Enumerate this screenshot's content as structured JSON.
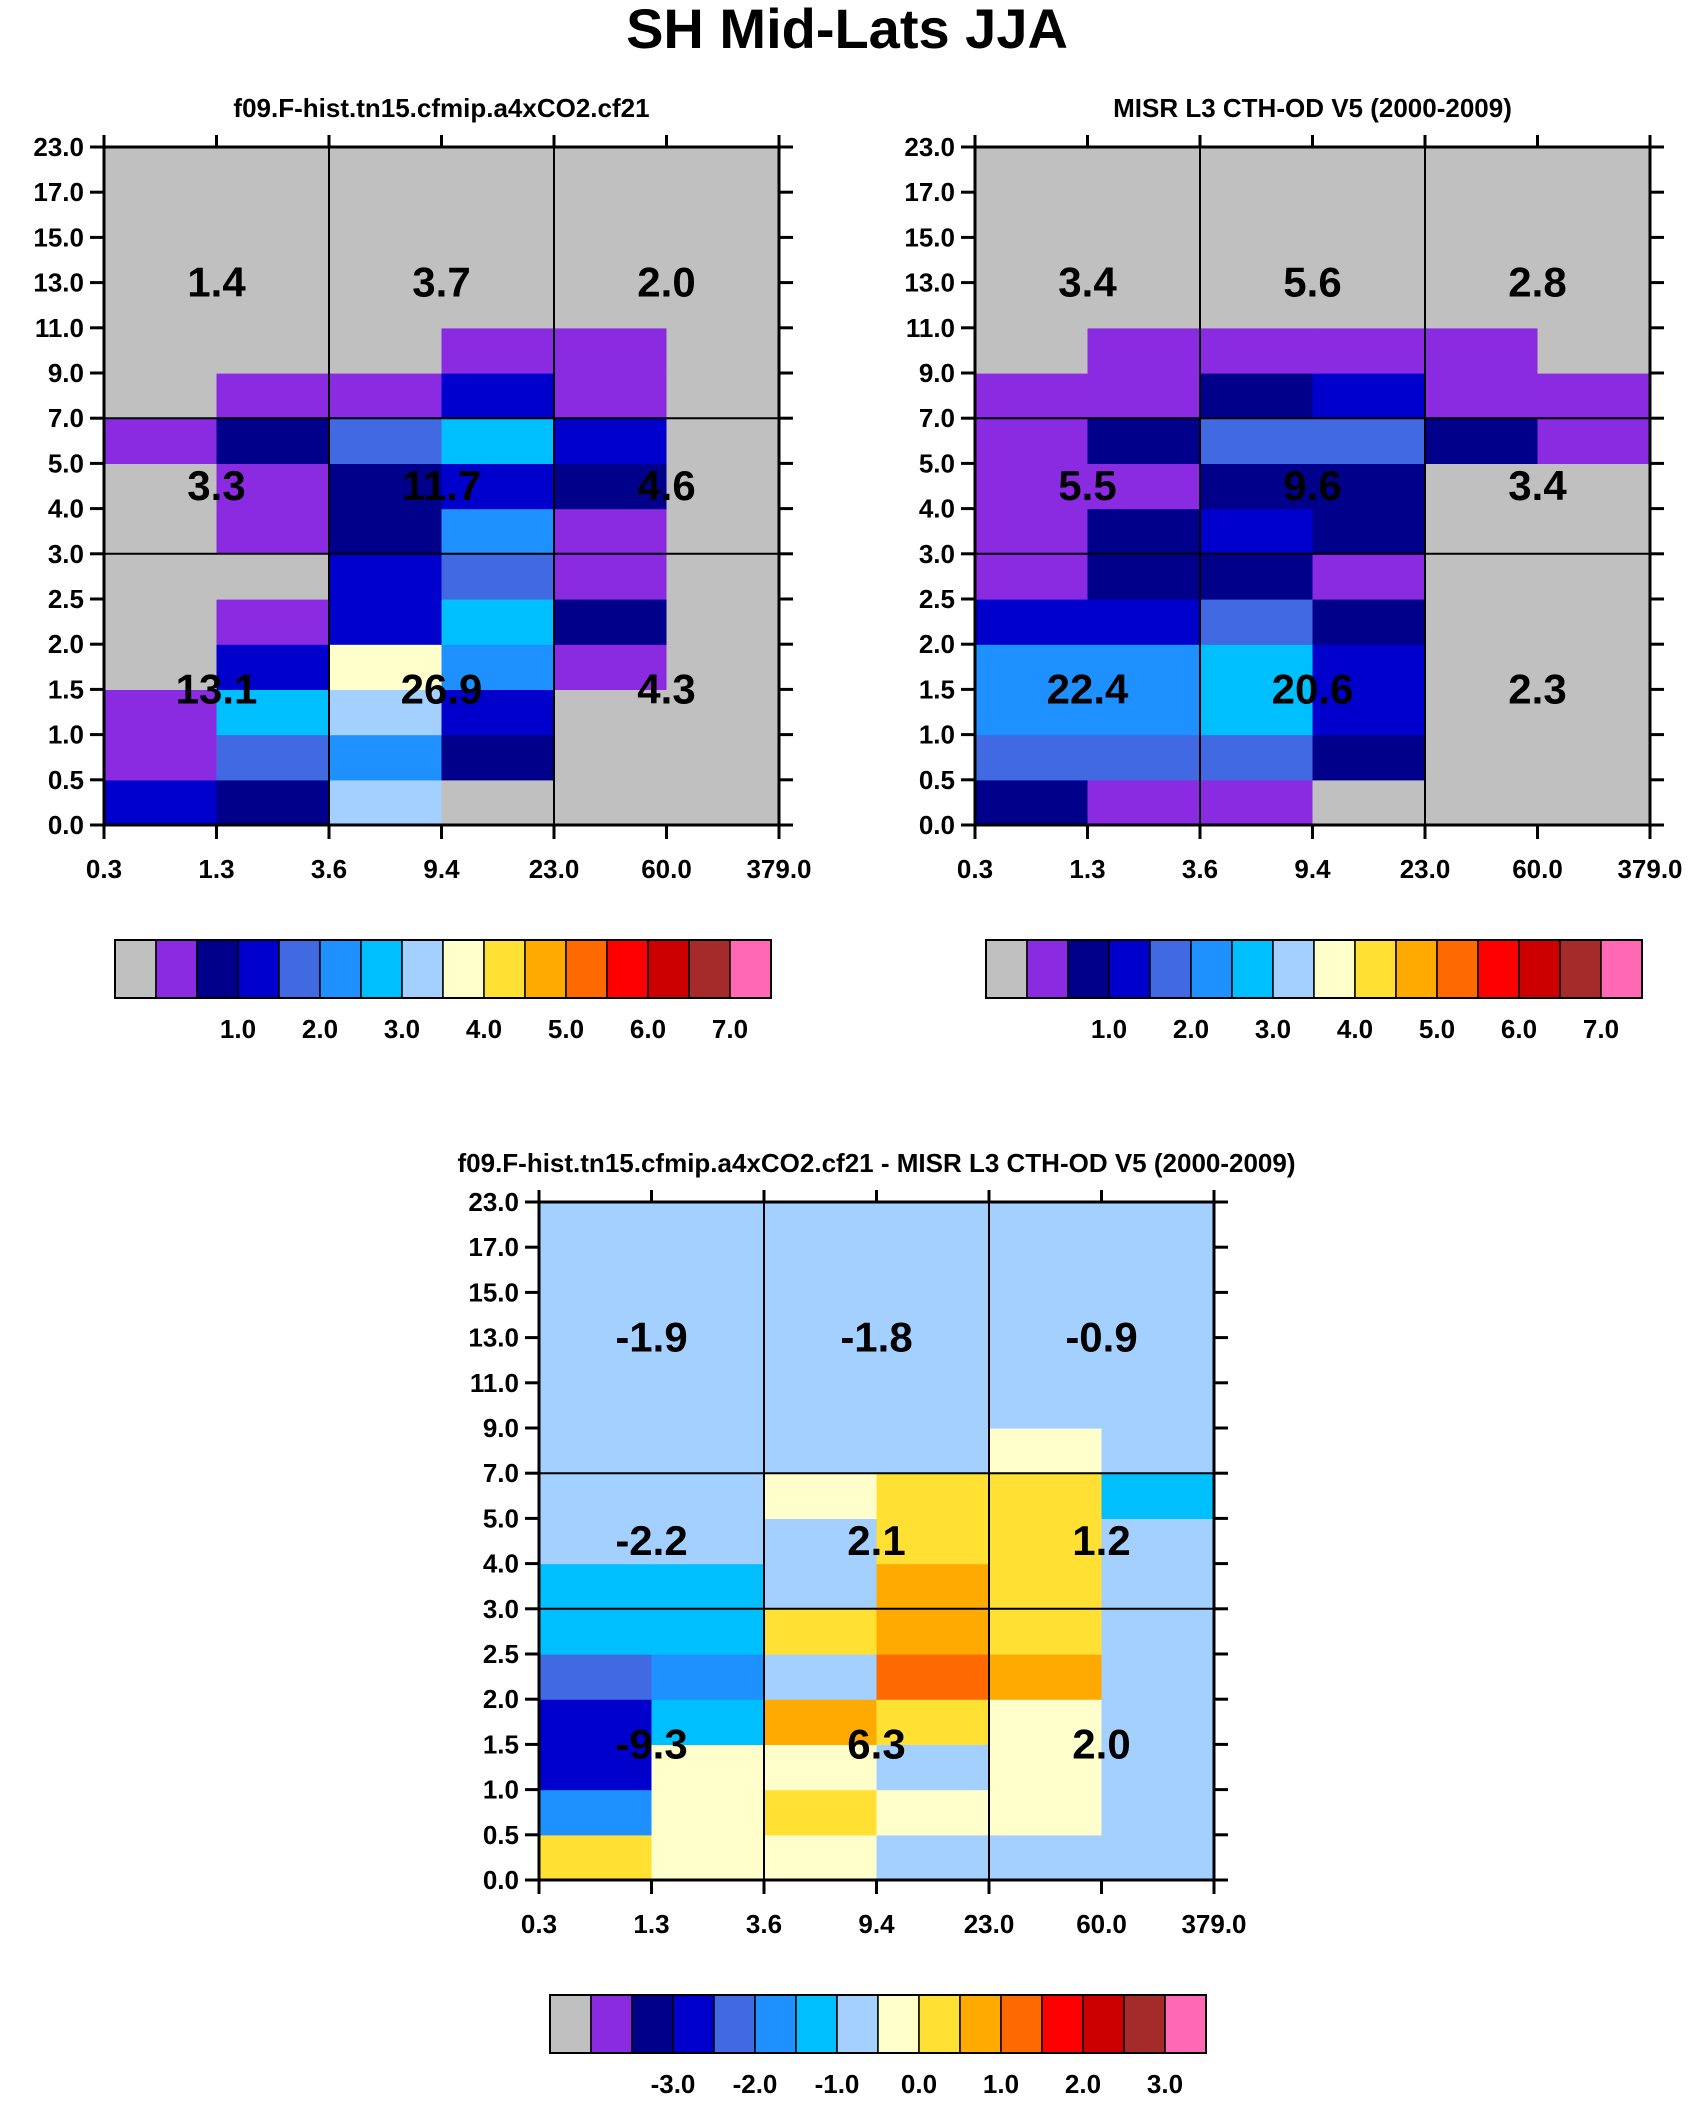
{
  "title": "SH Mid-Lats JJA",
  "palette": [
    "#c0c0c0",
    "#8a2be2",
    "#00008b",
    "#0000cd",
    "#4169e1",
    "#1e90ff",
    "#00bfff",
    "#a3d0ff",
    "#ffffcc",
    "#ffe033",
    "#ffaa00",
    "#ff6a00",
    "#ff0000",
    "#cc0000",
    "#a52a2a",
    "#ff69b4"
  ],
  "x_ticks": [
    "0.3",
    "1.3",
    "3.6",
    "9.4",
    "23.0",
    "60.0",
    "379.0"
  ],
  "y_ticks": [
    "0.0",
    "0.5",
    "1.0",
    "1.5",
    "2.0",
    "2.5",
    "3.0",
    "4.0",
    "5.0",
    "7.0",
    "9.0",
    "11.0",
    "13.0",
    "15.0",
    "17.0",
    "23.0"
  ],
  "chart_data": [
    {
      "type": "heatmap",
      "title": "f09.F-hist.tn15.cfmip.a4xCO2.cf21",
      "xlabel": "",
      "ylabel": "",
      "cells_palette_index": [
        [
          3,
          2,
          7,
          0,
          0,
          0
        ],
        [
          1,
          4,
          5,
          2,
          0,
          0
        ],
        [
          1,
          6,
          7,
          3,
          0,
          0
        ],
        [
          0,
          3,
          8,
          5,
          1,
          0
        ],
        [
          0,
          1,
          3,
          6,
          2,
          0
        ],
        [
          0,
          0,
          3,
          4,
          1,
          0
        ],
        [
          0,
          1,
          2,
          5,
          1,
          0
        ],
        [
          0,
          1,
          2,
          3,
          2,
          0
        ],
        [
          1,
          2,
          4,
          6,
          3,
          0
        ],
        [
          0,
          1,
          1,
          3,
          1,
          0
        ],
        [
          0,
          0,
          0,
          1,
          1,
          0
        ],
        [
          0,
          0,
          0,
          0,
          0,
          0
        ],
        [
          0,
          0,
          0,
          0,
          0,
          0
        ],
        [
          0,
          0,
          0,
          0,
          0,
          0
        ],
        [
          0,
          0,
          0,
          0,
          0,
          0
        ]
      ],
      "aggregate_labels": [
        [
          "13.1",
          "26.9",
          "4.3"
        ],
        [
          "3.3",
          "11.7",
          "4.6"
        ],
        [
          "1.4",
          "3.7",
          "2.0"
        ]
      ],
      "colorbar_labels": [
        "1.0",
        "2.0",
        "3.0",
        "4.0",
        "5.0",
        "6.0",
        "7.0"
      ]
    },
    {
      "type": "heatmap",
      "title": "MISR L3 CTH-OD V5 (2000-2009)",
      "xlabel": "",
      "ylabel": "",
      "cells_palette_index": [
        [
          2,
          1,
          1,
          0,
          0,
          0
        ],
        [
          4,
          4,
          4,
          2,
          0,
          0
        ],
        [
          5,
          5,
          6,
          3,
          0,
          0
        ],
        [
          5,
          5,
          6,
          3,
          0,
          0
        ],
        [
          3,
          3,
          4,
          2,
          0,
          0
        ],
        [
          1,
          2,
          2,
          1,
          0,
          0
        ],
        [
          1,
          2,
          3,
          2,
          0,
          0
        ],
        [
          1,
          1,
          2,
          2,
          0,
          0
        ],
        [
          1,
          2,
          4,
          4,
          2,
          1
        ],
        [
          1,
          1,
          2,
          3,
          1,
          1
        ],
        [
          0,
          1,
          1,
          1,
          1,
          0
        ],
        [
          0,
          0,
          0,
          0,
          0,
          0
        ],
        [
          0,
          0,
          0,
          0,
          0,
          0
        ],
        [
          0,
          0,
          0,
          0,
          0,
          0
        ],
        [
          0,
          0,
          0,
          0,
          0,
          0
        ]
      ],
      "aggregate_labels": [
        [
          "22.4",
          "20.6",
          "2.3"
        ],
        [
          "5.5",
          "9.6",
          "3.4"
        ],
        [
          "3.4",
          "5.6",
          "2.8"
        ]
      ],
      "colorbar_labels": [
        "1.0",
        "2.0",
        "3.0",
        "4.0",
        "5.0",
        "6.0",
        "7.0"
      ]
    },
    {
      "type": "heatmap",
      "title": "f09.F-hist.tn15.cfmip.a4xCO2.cf21 - MISR L3 CTH-OD V5 (2000-2009)",
      "xlabel": "",
      "ylabel": "",
      "cells_palette_index": [
        [
          9,
          8,
          8,
          7,
          7,
          7
        ],
        [
          5,
          8,
          9,
          8,
          8,
          7
        ],
        [
          3,
          8,
          8,
          7,
          8,
          7
        ],
        [
          3,
          6,
          10,
          9,
          8,
          7
        ],
        [
          4,
          5,
          7,
          11,
          10,
          7
        ],
        [
          6,
          6,
          9,
          10,
          9,
          7
        ],
        [
          6,
          6,
          7,
          10,
          9,
          7
        ],
        [
          7,
          7,
          7,
          9,
          9,
          7
        ],
        [
          7,
          7,
          8,
          9,
          9,
          6
        ],
        [
          7,
          7,
          7,
          7,
          8,
          7
        ],
        [
          7,
          7,
          7,
          7,
          7,
          7
        ],
        [
          7,
          7,
          7,
          7,
          7,
          7
        ],
        [
          7,
          7,
          7,
          7,
          7,
          7
        ],
        [
          7,
          7,
          7,
          7,
          7,
          7
        ],
        [
          7,
          7,
          7,
          7,
          7,
          7
        ]
      ],
      "aggregate_labels": [
        [
          "-9.3",
          "6.3",
          "2.0"
        ],
        [
          "-2.2",
          "2.1",
          "1.2"
        ],
        [
          "-1.9",
          "-1.8",
          "-0.9"
        ]
      ],
      "colorbar_labels": [
        "-3.0",
        "-2.0",
        "-1.0",
        "0.0",
        "1.0",
        "2.0",
        "3.0"
      ]
    }
  ]
}
